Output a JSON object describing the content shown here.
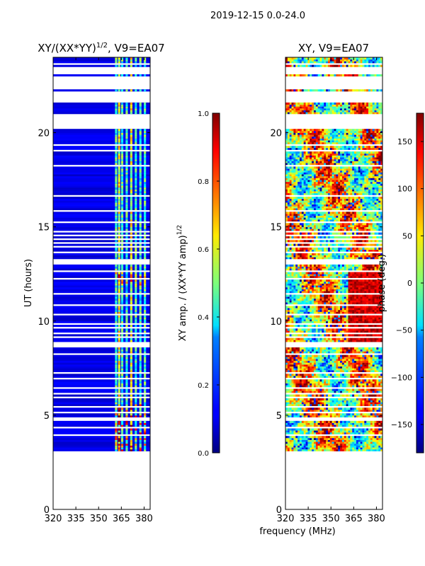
{
  "chart_data": {
    "type": "heatmap",
    "suptitle": "2019-12-15 0.0-24.0",
    "shared_xlabel": "frequency (MHz)",
    "panels": [
      {
        "id": "amp",
        "title": "XY/(XX*YY)",
        "title_sup": "1/2",
        "title_tail": ", V9=EA07",
        "ylabel": "UT (hours)",
        "xlim": [
          320,
          384
        ],
        "ylim": [
          0,
          24
        ],
        "xticks": [
          320,
          335,
          350,
          365,
          380
        ],
        "yticks": [
          0,
          5,
          10,
          15,
          20
        ],
        "data_ut_range": [
          3.0,
          24.0
        ],
        "bright_channels_mhz": [
          362,
          364,
          366,
          369,
          372,
          375,
          378,
          381
        ],
        "colorbar": {
          "label": "XY amp. / (XX*YY amp)",
          "label_sup": "1/2",
          "range": [
            0.0,
            1.0
          ],
          "ticks": [
            "0.0",
            "0.2",
            "0.4",
            "0.6",
            "0.8",
            "1.0"
          ],
          "tick_values": [
            0.0,
            0.2,
            0.4,
            0.6,
            0.8,
            1.0
          ],
          "colormap": "jet"
        }
      },
      {
        "id": "phase",
        "title": "XY, V9=EA07",
        "xlim": [
          320,
          384
        ],
        "ylim": [
          0,
          24
        ],
        "xticks": [
          320,
          335,
          350,
          365,
          380
        ],
        "yticks": [
          0,
          5,
          10,
          15,
          20
        ],
        "data_ut_range": [
          3.0,
          24.0
        ],
        "colorbar": {
          "label": "phase (deg.)",
          "range": [
            -180,
            180
          ],
          "ticks": [
            "−150",
            "−100",
            "−50",
            "0",
            "50",
            "100",
            "150"
          ],
          "tick_values": [
            -150,
            -100,
            -50,
            0,
            50,
            100,
            150
          ],
          "colormap": "jet"
        }
      }
    ],
    "flagged_ut_bands": [
      [
        3.05,
        3.15
      ],
      [
        3.3,
        3.35
      ],
      [
        3.6,
        3.65
      ],
      [
        3.95,
        4.05
      ],
      [
        4.35,
        4.4
      ],
      [
        4.7,
        4.85
      ],
      [
        5.1,
        5.15
      ],
      [
        5.35,
        5.45
      ],
      [
        5.65,
        5.7
      ],
      [
        5.9,
        5.95
      ],
      [
        6.1,
        6.15
      ],
      [
        6.4,
        6.45
      ],
      [
        6.65,
        6.7
      ],
      [
        6.9,
        6.95
      ],
      [
        7.2,
        7.25
      ],
      [
        7.45,
        7.5
      ],
      [
        7.65,
        7.7
      ],
      [
        7.85,
        7.9
      ],
      [
        8.2,
        8.3
      ],
      [
        8.55,
        8.9
      ],
      [
        9.05,
        9.15
      ],
      [
        9.3,
        9.4
      ],
      [
        9.55,
        9.65
      ],
      [
        9.8,
        9.85
      ],
      [
        10.3,
        10.4
      ],
      [
        10.55,
        10.6
      ],
      [
        10.8,
        10.9
      ],
      [
        11.15,
        11.2
      ],
      [
        11.35,
        11.45
      ],
      [
        11.75,
        11.8
      ],
      [
        12.15,
        12.25
      ],
      [
        12.6,
        12.65
      ],
      [
        12.95,
        13.3
      ],
      [
        13.6,
        13.65
      ],
      [
        13.9,
        13.95
      ],
      [
        14.1,
        14.15
      ],
      [
        14.3,
        14.35
      ],
      [
        14.5,
        14.55
      ],
      [
        14.7,
        14.75
      ],
      [
        14.95,
        15.0
      ],
      [
        15.2,
        15.25
      ],
      [
        15.55,
        15.6
      ],
      [
        15.8,
        15.85
      ],
      [
        16.05,
        16.1
      ],
      [
        16.35,
        16.4
      ],
      [
        16.6,
        16.65
      ],
      [
        17.15,
        17.2
      ],
      [
        17.55,
        17.6
      ],
      [
        17.95,
        18.0
      ],
      [
        18.2,
        18.25
      ],
      [
        18.55,
        18.6
      ],
      [
        18.75,
        18.8
      ],
      [
        19.05,
        19.1
      ],
      [
        19.35,
        19.4
      ],
      [
        19.7,
        19.75
      ],
      [
        20.25,
        21.0
      ],
      [
        21.1,
        21.15
      ],
      [
        21.3,
        21.35
      ],
      [
        21.6,
        22.2
      ],
      [
        22.3,
        22.6
      ],
      [
        22.65,
        23.0
      ],
      [
        23.1,
        23.3
      ],
      [
        23.35,
        23.55
      ],
      [
        23.6,
        23.75
      ]
    ]
  }
}
